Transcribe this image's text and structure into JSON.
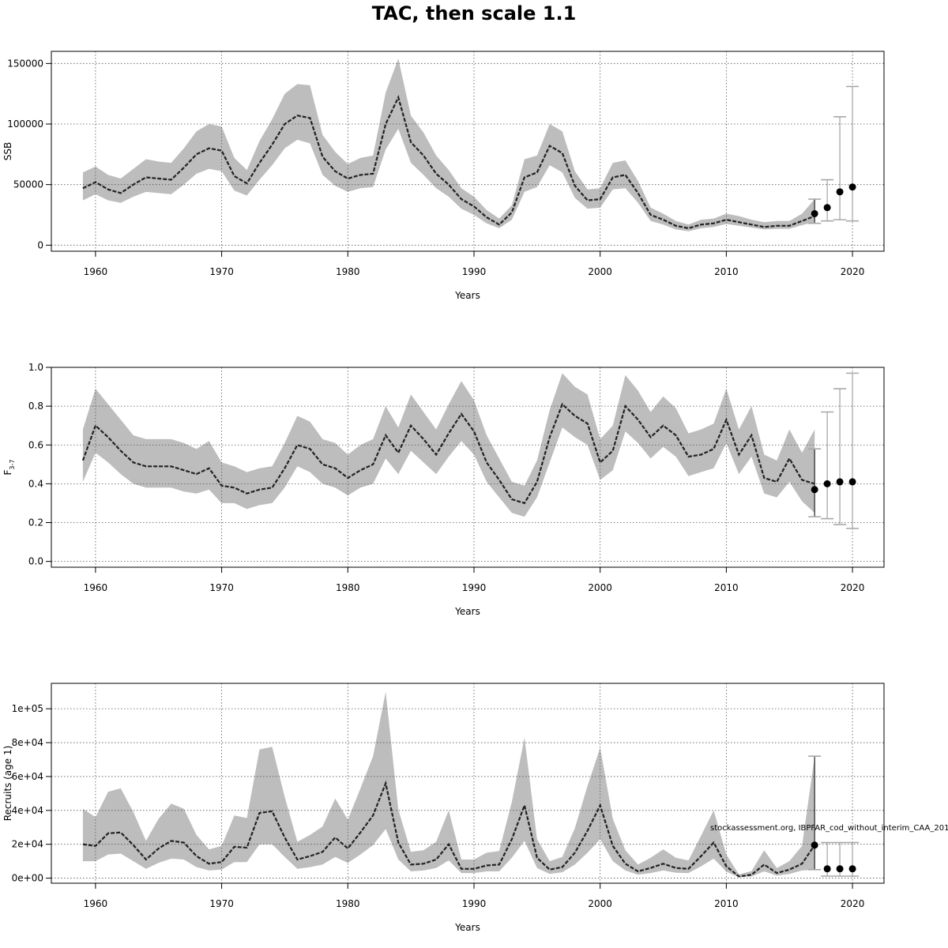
{
  "title": "TAC, then scale 1.1",
  "annotation": "stockassessment.org, IBPFAR_cod_without_interim_CAA_201",
  "chart_data": [
    {
      "type": "line",
      "ylabel": "SSB",
      "xlabel": "Years",
      "xlim": [
        1956.5,
        2022.5
      ],
      "ylim": [
        -5000,
        160000
      ],
      "xticks": [
        1960,
        1970,
        1980,
        1990,
        2000,
        2010,
        2020
      ],
      "yticks": [
        0,
        50000,
        100000,
        150000
      ],
      "ytick_labels": [
        "0",
        "50000",
        "100000",
        "150000"
      ],
      "grid": true,
      "x": [
        1959,
        1960,
        1961,
        1962,
        1963,
        1964,
        1965,
        1966,
        1967,
        1968,
        1969,
        1970,
        1971,
        1972,
        1973,
        1974,
        1975,
        1976,
        1977,
        1978,
        1979,
        1980,
        1981,
        1982,
        1983,
        1984,
        1985,
        1986,
        1987,
        1988,
        1989,
        1990,
        1991,
        1992,
        1993,
        1994,
        1995,
        1996,
        1997,
        1998,
        1999,
        2000,
        2001,
        2002,
        2003,
        2004,
        2005,
        2006,
        2007,
        2008,
        2009,
        2010,
        2011,
        2012,
        2013,
        2014,
        2015,
        2016,
        2017
      ],
      "estimate": [
        47000,
        52000,
        46000,
        43000,
        50000,
        56000,
        55000,
        54000,
        64000,
        75000,
        80000,
        78000,
        57000,
        51000,
        68000,
        83000,
        100000,
        107000,
        105000,
        73000,
        61000,
        55000,
        58000,
        59000,
        100000,
        122000,
        85000,
        74000,
        59000,
        50000,
        38000,
        32000,
        23000,
        17000,
        27000,
        56000,
        60000,
        82000,
        76000,
        49000,
        37000,
        38000,
        56000,
        58000,
        43000,
        25000,
        21000,
        16000,
        14000,
        17000,
        18000,
        21000,
        19000,
        17000,
        15000,
        16000,
        16000,
        20000,
        24000
      ],
      "lower": [
        37000,
        42000,
        37000,
        35000,
        40000,
        44000,
        43000,
        42000,
        50000,
        59000,
        63000,
        61000,
        45000,
        41000,
        54000,
        66000,
        80000,
        87000,
        84000,
        58000,
        49000,
        44000,
        47000,
        48000,
        79000,
        96000,
        68000,
        58000,
        47000,
        40000,
        30000,
        25000,
        18000,
        14000,
        21000,
        44000,
        48000,
        66000,
        60000,
        39000,
        30000,
        31000,
        46000,
        47000,
        35000,
        20000,
        17000,
        13000,
        11500,
        14000,
        15000,
        17500,
        16000,
        14500,
        13000,
        13500,
        13500,
        16500,
        19000
      ],
      "upper": [
        60000,
        65000,
        58000,
        55000,
        63000,
        71000,
        69000,
        68000,
        80000,
        94000,
        100000,
        98000,
        72000,
        62000,
        86000,
        104000,
        125000,
        133000,
        132000,
        91000,
        77000,
        67000,
        72000,
        74000,
        126000,
        154000,
        107000,
        93000,
        74000,
        62000,
        47000,
        40000,
        29000,
        22000,
        33000,
        71000,
        74000,
        100000,
        94000,
        61000,
        46000,
        47000,
        68000,
        70000,
        53000,
        31000,
        26000,
        20000,
        17000,
        21000,
        22000,
        26000,
        24000,
        21000,
        19000,
        20000,
        20000,
        26000,
        38000
      ],
      "forecast": {
        "years": [
          2017,
          2018,
          2019,
          2020
        ],
        "median": [
          26000,
          31000,
          44000,
          48000
        ],
        "lower": [
          18000,
          20000,
          21000,
          20000
        ],
        "upper": [
          38000,
          54000,
          106000,
          131000
        ]
      }
    },
    {
      "type": "line",
      "ylabel": "F3-7",
      "xlabel": "Years",
      "xlim": [
        1956.5,
        2022.5
      ],
      "ylim": [
        -0.03,
        1.0
      ],
      "xticks": [
        1960,
        1970,
        1980,
        1990,
        2000,
        2010,
        2020
      ],
      "yticks": [
        0,
        0.2,
        0.4,
        0.6,
        0.8,
        1.0
      ],
      "ytick_labels": [
        "0.0",
        "0.2",
        "0.4",
        "0.6",
        "0.8",
        "1.0"
      ],
      "grid": true,
      "x": [
        1959,
        1960,
        1961,
        1962,
        1963,
        1964,
        1965,
        1966,
        1967,
        1968,
        1969,
        1970,
        1971,
        1972,
        1973,
        1974,
        1975,
        1976,
        1977,
        1978,
        1979,
        1980,
        1981,
        1982,
        1983,
        1984,
        1985,
        1986,
        1987,
        1988,
        1989,
        1990,
        1991,
        1992,
        1993,
        1994,
        1995,
        1996,
        1997,
        1998,
        1999,
        2000,
        2001,
        2002,
        2003,
        2004,
        2005,
        2006,
        2007,
        2008,
        2009,
        2010,
        2011,
        2012,
        2013,
        2014,
        2015,
        2016,
        2017
      ],
      "estimate": [
        0.52,
        0.7,
        0.64,
        0.57,
        0.51,
        0.49,
        0.49,
        0.49,
        0.47,
        0.45,
        0.48,
        0.39,
        0.38,
        0.35,
        0.37,
        0.38,
        0.48,
        0.6,
        0.58,
        0.5,
        0.48,
        0.43,
        0.47,
        0.5,
        0.65,
        0.56,
        0.7,
        0.63,
        0.55,
        0.66,
        0.76,
        0.67,
        0.51,
        0.42,
        0.32,
        0.3,
        0.41,
        0.64,
        0.81,
        0.75,
        0.71,
        0.51,
        0.57,
        0.8,
        0.73,
        0.64,
        0.7,
        0.65,
        0.54,
        0.55,
        0.58,
        0.73,
        0.55,
        0.65,
        0.43,
        0.41,
        0.53,
        0.42,
        0.4
      ],
      "lower": [
        0.41,
        0.56,
        0.51,
        0.45,
        0.4,
        0.38,
        0.38,
        0.38,
        0.36,
        0.35,
        0.37,
        0.3,
        0.3,
        0.27,
        0.29,
        0.3,
        0.38,
        0.49,
        0.46,
        0.4,
        0.38,
        0.34,
        0.38,
        0.4,
        0.53,
        0.45,
        0.57,
        0.51,
        0.45,
        0.54,
        0.62,
        0.55,
        0.41,
        0.33,
        0.25,
        0.23,
        0.33,
        0.51,
        0.69,
        0.64,
        0.6,
        0.42,
        0.47,
        0.67,
        0.61,
        0.53,
        0.59,
        0.54,
        0.44,
        0.46,
        0.48,
        0.61,
        0.45,
        0.54,
        0.35,
        0.33,
        0.41,
        0.31,
        0.25
      ],
      "upper": [
        0.68,
        0.89,
        0.81,
        0.73,
        0.65,
        0.63,
        0.63,
        0.63,
        0.61,
        0.58,
        0.62,
        0.51,
        0.49,
        0.46,
        0.48,
        0.49,
        0.61,
        0.75,
        0.72,
        0.63,
        0.61,
        0.55,
        0.6,
        0.63,
        0.8,
        0.69,
        0.86,
        0.77,
        0.68,
        0.81,
        0.93,
        0.83,
        0.65,
        0.53,
        0.41,
        0.39,
        0.52,
        0.78,
        0.97,
        0.9,
        0.86,
        0.63,
        0.7,
        0.96,
        0.88,
        0.77,
        0.85,
        0.79,
        0.66,
        0.68,
        0.71,
        0.89,
        0.68,
        0.8,
        0.55,
        0.52,
        0.68,
        0.56,
        0.68
      ],
      "forecast": {
        "years": [
          2017,
          2018,
          2019,
          2020
        ],
        "median": [
          0.37,
          0.4,
          0.41,
          0.41
        ],
        "lower": [
          0.23,
          0.22,
          0.19,
          0.17
        ],
        "upper": [
          0.58,
          0.77,
          0.89,
          0.97
        ]
      }
    },
    {
      "type": "line",
      "ylabel": "Recruits (age 1)",
      "xlabel": "Years",
      "xlim": [
        1956.5,
        2022.5
      ],
      "ylim": [
        -3000,
        115000
      ],
      "xticks": [
        1960,
        1970,
        1980,
        1990,
        2000,
        2010,
        2020
      ],
      "yticks": [
        0,
        20000,
        40000,
        60000,
        80000,
        100000
      ],
      "ytick_labels": [
        "0e+00",
        "2e+04",
        "4e+04",
        "6e+04",
        "8e+04",
        "1e+05"
      ],
      "grid": true,
      "x": [
        1959,
        1960,
        1961,
        1962,
        1963,
        1964,
        1965,
        1966,
        1967,
        1968,
        1969,
        1970,
        1971,
        1972,
        1973,
        1974,
        1975,
        1976,
        1977,
        1978,
        1979,
        1980,
        1981,
        1982,
        1983,
        1984,
        1985,
        1986,
        1987,
        1988,
        1989,
        1990,
        1991,
        1992,
        1993,
        1994,
        1995,
        1996,
        1997,
        1998,
        1999,
        2000,
        2001,
        2002,
        2003,
        2004,
        2005,
        2006,
        2007,
        2008,
        2009,
        2010,
        2011,
        2012,
        2013,
        2014,
        2015,
        2016,
        2017
      ],
      "estimate": [
        20000,
        19000,
        26500,
        27000,
        19500,
        11000,
        17500,
        22000,
        21000,
        13000,
        8500,
        9500,
        18500,
        18000,
        38500,
        39500,
        24000,
        11000,
        13000,
        15500,
        24000,
        17500,
        27000,
        37000,
        56000,
        21000,
        8000,
        8500,
        11000,
        20000,
        5500,
        5500,
        7500,
        8000,
        23000,
        43000,
        12000,
        5000,
        6500,
        15000,
        28000,
        43000,
        19000,
        8500,
        4000,
        6000,
        8500,
        6000,
        5500,
        13000,
        21000,
        7000,
        1000,
        2000,
        8000,
        3000,
        5000,
        8500,
        19500
      ],
      "lower": [
        10000,
        10000,
        14000,
        14500,
        10000,
        5500,
        9000,
        11500,
        11000,
        6500,
        4500,
        5000,
        9500,
        9500,
        20000,
        20000,
        12500,
        5500,
        6500,
        8000,
        12500,
        9000,
        14000,
        19500,
        29000,
        11000,
        4000,
        4500,
        6000,
        10500,
        3000,
        3000,
        4000,
        4000,
        12000,
        22000,
        6000,
        2500,
        3500,
        8000,
        15000,
        23000,
        10000,
        4500,
        2000,
        3000,
        4500,
        3200,
        3000,
        7000,
        11500,
        3800,
        500,
        1000,
        4000,
        1500,
        2500,
        4500,
        5000
      ],
      "upper": [
        41000,
        36000,
        51000,
        53000,
        39000,
        22000,
        35000,
        44000,
        41000,
        25500,
        17000,
        19000,
        37000,
        35500,
        76000,
        77500,
        48000,
        21500,
        25500,
        30500,
        47000,
        34500,
        53000,
        72000,
        110000,
        40500,
        15500,
        16500,
        21500,
        40000,
        11000,
        11000,
        15000,
        16000,
        45000,
        83000,
        23000,
        10000,
        12500,
        29500,
        54500,
        77000,
        35000,
        16500,
        8000,
        12000,
        17000,
        12000,
        10500,
        25000,
        40000,
        14000,
        2200,
        4200,
        16500,
        6000,
        10000,
        19000,
        72000
      ],
      "forecast": {
        "years": [
          2017,
          2018,
          2019,
          2020
        ],
        "median": [
          19500,
          5500,
          5500,
          5500
        ],
        "lower": [
          5000,
          1200,
          1200,
          1200
        ],
        "upper": [
          72000,
          21000,
          21000,
          21000
        ]
      }
    }
  ]
}
